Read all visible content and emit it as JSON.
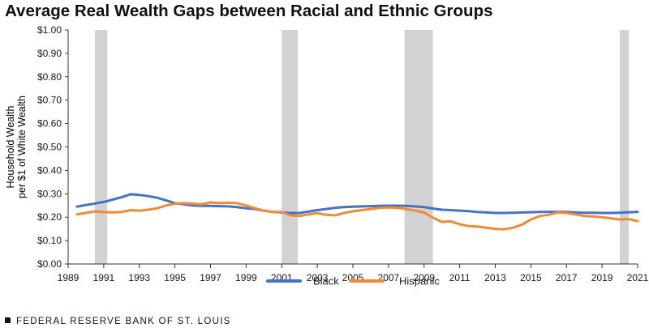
{
  "chart_data": {
    "type": "line",
    "title": "Average Real Wealth Gaps between Racial and Ethnic Groups",
    "ylabel": "Household Wealth\nper $1 of White Wealth",
    "xlabel": "",
    "ylim": [
      0,
      1.0
    ],
    "xlim": [
      1989,
      2021
    ],
    "y_ticks": [
      0.0,
      0.1,
      0.2,
      0.3,
      0.4,
      0.5,
      0.6,
      0.7,
      0.8,
      0.9,
      1.0
    ],
    "y_tick_labels": [
      "$0.00",
      "$0.10",
      "$0.20",
      "$0.30",
      "$0.40",
      "$0.50",
      "$0.60",
      "$0.70",
      "$0.80",
      "$0.90",
      "$1.00"
    ],
    "x_ticks": [
      1989,
      1991,
      1993,
      1995,
      1997,
      1999,
      2001,
      2003,
      2005,
      2007,
      2009,
      2011,
      2013,
      2015,
      2017,
      2019,
      2021
    ],
    "recessions": [
      [
        1990.5,
        1991.2
      ],
      [
        2001.0,
        2001.9
      ],
      [
        2007.9,
        2009.5
      ],
      [
        2020.0,
        2020.5
      ]
    ],
    "legend_position": "bottom-center",
    "series": [
      {
        "name": "Black",
        "color": "#4472c4",
        "x": [
          1989.5,
          1990.0,
          1990.5,
          1991.0,
          1991.5,
          1992.0,
          1992.5,
          1993.0,
          1993.5,
          1994.0,
          1994.5,
          1995.0,
          1995.5,
          1996.0,
          1996.5,
          1997.0,
          1997.5,
          1998.0,
          1998.5,
          1999.0,
          1999.5,
          2000.0,
          2000.5,
          2001.0,
          2001.5,
          2002.0,
          2002.5,
          2003.0,
          2003.5,
          2004.0,
          2004.5,
          2005.0,
          2005.5,
          2006.0,
          2006.5,
          2007.0,
          2007.5,
          2008.0,
          2008.5,
          2009.0,
          2009.5,
          2010.0,
          2010.5,
          2011.0,
          2011.5,
          2012.0,
          2012.5,
          2013.0,
          2013.5,
          2014.0,
          2014.5,
          2015.0,
          2015.5,
          2016.0,
          2016.5,
          2017.0,
          2017.5,
          2018.0,
          2018.5,
          2019.0,
          2019.5,
          2020.0,
          2020.5,
          2021.0
        ],
        "values": [
          0.245,
          0.252,
          0.258,
          0.265,
          0.275,
          0.285,
          0.298,
          0.295,
          0.29,
          0.283,
          0.272,
          0.26,
          0.255,
          0.25,
          0.248,
          0.248,
          0.247,
          0.246,
          0.243,
          0.238,
          0.235,
          0.228,
          0.222,
          0.22,
          0.218,
          0.218,
          0.224,
          0.23,
          0.235,
          0.24,
          0.243,
          0.245,
          0.246,
          0.247,
          0.248,
          0.249,
          0.249,
          0.248,
          0.246,
          0.243,
          0.237,
          0.232,
          0.23,
          0.228,
          0.226,
          0.222,
          0.22,
          0.218,
          0.218,
          0.219,
          0.22,
          0.221,
          0.222,
          0.223,
          0.223,
          0.222,
          0.22,
          0.219,
          0.219,
          0.218,
          0.218,
          0.219,
          0.221,
          0.223
        ]
      },
      {
        "name": "Hispanic",
        "color": "#f08a33",
        "x": [
          1989.5,
          1990.0,
          1990.5,
          1991.0,
          1991.5,
          1992.0,
          1992.5,
          1993.0,
          1993.5,
          1994.0,
          1994.5,
          1995.0,
          1995.5,
          1996.0,
          1996.5,
          1997.0,
          1997.5,
          1998.0,
          1998.5,
          1999.0,
          1999.5,
          2000.0,
          2000.5,
          2001.0,
          2001.5,
          2002.0,
          2002.5,
          2003.0,
          2003.5,
          2004.0,
          2004.5,
          2005.0,
          2005.5,
          2006.0,
          2006.5,
          2007.0,
          2007.5,
          2008.0,
          2008.5,
          2009.0,
          2009.5,
          2010.0,
          2010.5,
          2011.0,
          2011.5,
          2012.0,
          2012.5,
          2013.0,
          2013.5,
          2014.0,
          2014.5,
          2015.0,
          2015.5,
          2016.0,
          2016.5,
          2017.0,
          2017.5,
          2018.0,
          2018.5,
          2019.0,
          2019.5,
          2020.0,
          2020.5,
          2021.0
        ],
        "values": [
          0.212,
          0.218,
          0.225,
          0.222,
          0.22,
          0.222,
          0.23,
          0.228,
          0.232,
          0.238,
          0.25,
          0.258,
          0.26,
          0.258,
          0.255,
          0.263,
          0.26,
          0.262,
          0.26,
          0.25,
          0.238,
          0.228,
          0.222,
          0.222,
          0.208,
          0.205,
          0.212,
          0.217,
          0.21,
          0.208,
          0.218,
          0.225,
          0.23,
          0.235,
          0.24,
          0.242,
          0.24,
          0.235,
          0.228,
          0.22,
          0.198,
          0.18,
          0.182,
          0.17,
          0.162,
          0.16,
          0.155,
          0.15,
          0.148,
          0.155,
          0.168,
          0.19,
          0.205,
          0.21,
          0.22,
          0.218,
          0.212,
          0.205,
          0.203,
          0.2,
          0.195,
          0.19,
          0.192,
          0.183
        ]
      }
    ]
  },
  "footer": {
    "text": "FEDERAL RESERVE BANK OF ST. LOUIS"
  }
}
